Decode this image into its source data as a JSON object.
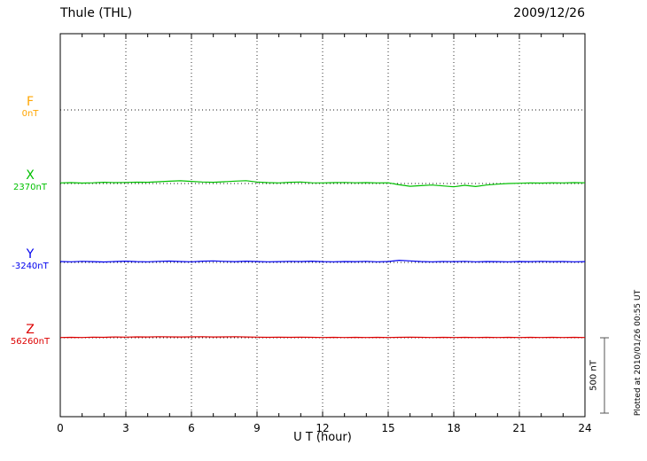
{
  "header": {
    "title": "Thule (THL)",
    "date": "2009/12/26"
  },
  "x_axis": {
    "label": "U T (hour)",
    "ticks": [
      0,
      3,
      6,
      9,
      12,
      15,
      18,
      21,
      24
    ],
    "range": [
      0,
      24
    ]
  },
  "scale_bar": {
    "label": "500 nT",
    "value_nT": 500
  },
  "footer_note": "Plotted at 2010/01/26 00:55 UT",
  "chart_data": {
    "type": "line",
    "title": "Thule (THL) magnetogram 2009/12/26",
    "xlabel": "U T (hour)",
    "x_range": [
      0,
      24
    ],
    "grid": "dotted vertical every 3 hours",
    "scale": {
      "label": "500 nT",
      "nT": 500
    },
    "x": [
      0,
      0.5,
      1,
      1.5,
      2,
      2.5,
      3,
      3.5,
      4,
      4.5,
      5,
      5.5,
      6,
      6.5,
      7,
      7.5,
      8,
      8.5,
      9,
      9.5,
      10,
      10.5,
      11,
      11.5,
      12,
      12.5,
      13,
      13.5,
      14,
      14.5,
      15,
      15.5,
      16,
      16.5,
      17,
      17.5,
      18,
      18.5,
      19,
      19.5,
      20,
      20.5,
      21,
      21.5,
      22,
      22.5,
      23,
      23.5,
      24
    ],
    "series": [
      {
        "name": "F",
        "baseline_label": "0nT",
        "baseline_nT": 0,
        "color": "#FFA500",
        "values": []
      },
      {
        "name": "X",
        "baseline_label": "2370nT",
        "baseline_nT": 2370,
        "color": "#00C000",
        "values": [
          2374,
          2376,
          2373,
          2375,
          2378,
          2376,
          2377,
          2379,
          2378,
          2382,
          2385,
          2388,
          2384,
          2380,
          2378,
          2382,
          2386,
          2389,
          2380,
          2376,
          2374,
          2378,
          2380,
          2375,
          2374,
          2376,
          2377,
          2375,
          2376,
          2374,
          2375,
          2362,
          2352,
          2356,
          2360,
          2354,
          2348,
          2358,
          2350,
          2360,
          2366,
          2370,
          2372,
          2374,
          2373,
          2375,
          2374,
          2376,
          2375
        ]
      },
      {
        "name": "Y",
        "baseline_label": "-3240nT",
        "baseline_nT": -3240,
        "color": "#0000EE",
        "values": [
          -3234,
          -3236,
          -3233,
          -3235,
          -3237,
          -3234,
          -3232,
          -3235,
          -3236,
          -3233,
          -3231,
          -3234,
          -3236,
          -3232,
          -3230,
          -3233,
          -3235,
          -3232,
          -3234,
          -3236,
          -3235,
          -3233,
          -3234,
          -3232,
          -3235,
          -3236,
          -3234,
          -3235,
          -3233,
          -3236,
          -3234,
          -3226,
          -3230,
          -3234,
          -3236,
          -3234,
          -3235,
          -3233,
          -3236,
          -3234,
          -3235,
          -3236,
          -3234,
          -3235,
          -3233,
          -3235,
          -3234,
          -3236,
          -3235
        ]
      },
      {
        "name": "Z",
        "baseline_label": "56260nT",
        "baseline_nT": 56260,
        "color": "#DD0000",
        "values": [
          56262,
          56263,
          56262,
          56264,
          56263,
          56265,
          56264,
          56266,
          56265,
          56267,
          56266,
          56265,
          56266,
          56267,
          56265,
          56266,
          56267,
          56265,
          56264,
          56263,
          56264,
          56263,
          56264,
          56263,
          56262,
          56263,
          56262,
          56263,
          56262,
          56263,
          56262,
          56263,
          56264,
          56263,
          56262,
          56263,
          56262,
          56263,
          56262,
          56263,
          56262,
          56263,
          56262,
          56263,
          56262,
          56263,
          56262,
          56263,
          56262
        ]
      }
    ]
  }
}
